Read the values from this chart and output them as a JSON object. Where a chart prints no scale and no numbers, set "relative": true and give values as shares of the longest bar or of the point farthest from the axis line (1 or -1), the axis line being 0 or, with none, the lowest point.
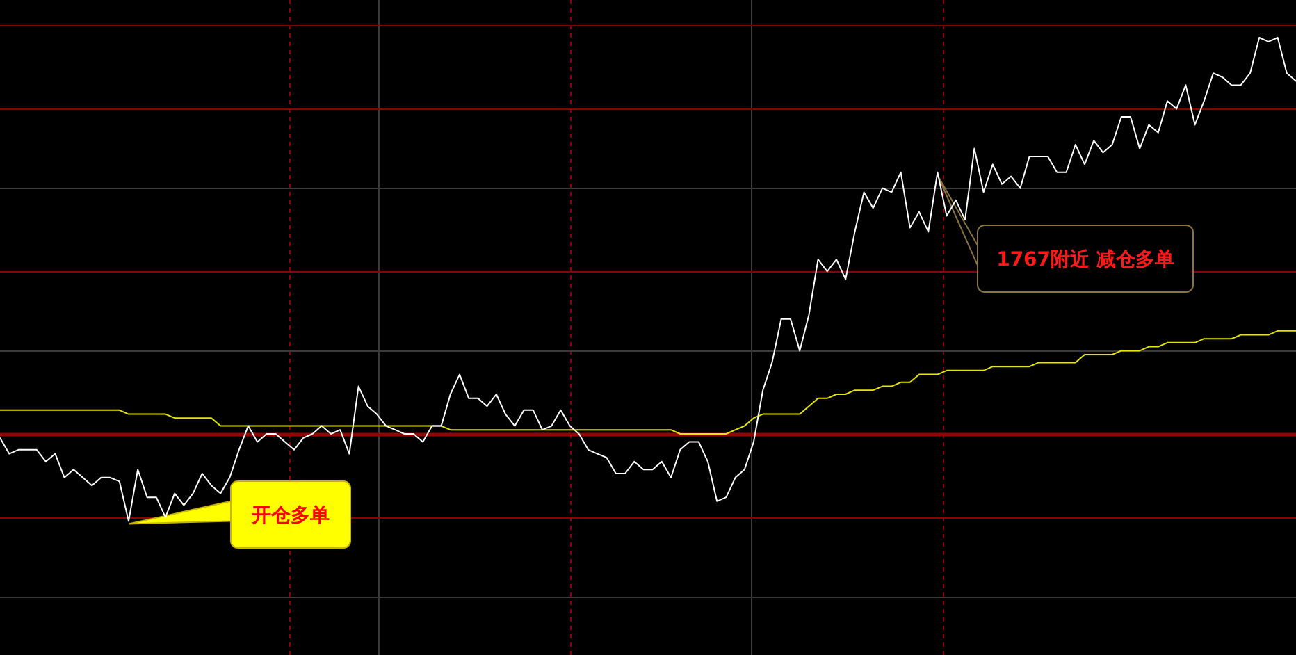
{
  "chart_data": {
    "type": "line",
    "relative": true,
    "grid": "x",
    "ref_lines": [
      {
        "axis": "y",
        "value": 0,
        "color": "#990000"
      },
      {
        "axis": "y",
        "value": 1.03,
        "color": "#8b0000"
      },
      {
        "axis": "y",
        "value": 0.82,
        "color": "#8b0000"
      },
      {
        "axis": "y",
        "value": 0.62,
        "color": "#3a3a3a"
      },
      {
        "axis": "y",
        "value": 0.41,
        "color": "#8b0000"
      },
      {
        "axis": "y",
        "value": 0.21,
        "color": "#3a3a3a"
      },
      {
        "axis": "y",
        "value": -0.21,
        "color": "#8b0000"
      },
      {
        "axis": "y",
        "value": -0.41,
        "color": "#3a3a3a"
      }
    ],
    "categories": [
      null,
      null,
      null,
      null,
      null,
      null,
      null,
      null,
      null,
      null,
      null,
      null,
      null,
      null,
      null,
      null,
      null,
      null,
      null,
      null,
      null,
      null,
      null,
      null,
      null,
      null,
      null,
      null,
      null,
      null,
      null,
      null,
      null,
      null,
      null,
      null,
      null,
      null,
      null,
      null,
      null,
      null,
      null,
      null,
      null,
      null,
      null,
      null,
      null,
      null,
      null,
      null,
      null,
      null,
      null,
      null,
      null,
      null,
      null,
      null,
      null,
      null,
      null,
      null,
      null,
      null,
      null,
      null,
      null,
      null,
      null,
      null,
      null,
      null,
      null,
      null,
      null,
      null,
      null,
      null,
      null,
      null,
      null,
      null,
      null,
      null,
      null,
      null,
      null,
      null,
      null,
      null,
      null,
      null,
      null,
      null,
      null,
      null,
      null,
      null,
      null,
      null,
      null,
      null,
      null,
      null,
      null,
      null,
      null,
      null,
      null,
      null,
      null,
      null,
      null,
      null,
      null,
      null,
      null,
      null,
      null,
      null,
      null,
      null,
      null,
      null,
      null,
      null,
      null,
      null,
      null,
      null,
      null,
      null,
      null,
      null,
      null,
      null,
      null,
      null,
      null,
      null
    ],
    "series": [
      {
        "color": "#ffffff",
        "values": [
          -0.01,
          -0.05,
          -0.04,
          -0.04,
          -0.04,
          -0.07,
          -0.05,
          -0.11,
          -0.09,
          -0.11,
          -0.13,
          -0.11,
          -0.11,
          -0.12,
          -0.22,
          -0.09,
          -0.16,
          -0.16,
          -0.21,
          -0.15,
          -0.18,
          -0.15,
          -0.1,
          -0.13,
          -0.15,
          -0.11,
          -0.04,
          0.02,
          -0.02,
          0,
          0,
          -0.02,
          -0.04,
          -0.01,
          0,
          0.02,
          0,
          0.01,
          -0.05,
          0.12,
          0.07,
          0.05,
          0.02,
          0.01,
          0,
          0,
          -0.02,
          0.02,
          0.02,
          0.1,
          0.15,
          0.09,
          0.09,
          0.07,
          0.1,
          0.05,
          0.02,
          0.06,
          0.06,
          0.01,
          0.02,
          0.06,
          0.02,
          0,
          -0.04,
          -0.05,
          -0.06,
          -0.1,
          -0.1,
          -0.07,
          -0.09,
          -0.09,
          -0.07,
          -0.11,
          -0.04,
          -0.02,
          -0.02,
          -0.07,
          -0.17,
          -0.16,
          -0.11,
          -0.09,
          -0.02,
          0.11,
          0.18,
          0.29,
          0.29,
          0.21,
          0.3,
          0.44,
          0.41,
          0.44,
          0.39,
          0.51,
          0.61,
          0.57,
          0.62,
          0.61,
          0.66,
          0.52,
          0.56,
          0.51,
          0.66,
          0.55,
          0.59,
          0.54,
          0.72,
          0.61,
          0.68,
          0.63,
          0.65,
          0.62,
          0.7,
          0.7,
          0.7,
          0.66,
          0.66,
          0.73,
          0.68,
          0.74,
          0.71,
          0.73,
          0.8,
          0.8,
          0.72,
          0.78,
          0.76,
          0.84,
          0.82,
          0.88,
          0.78,
          0.84,
          0.91,
          0.9,
          0.88,
          0.88,
          0.91,
          1,
          0.99,
          1,
          0.91,
          0.89
        ]
      },
      {
        "color": "#e6e600",
        "values": [
          0.06,
          0.06,
          0.06,
          0.06,
          0.06,
          0.06,
          0.06,
          0.06,
          0.06,
          0.06,
          0.06,
          0.06,
          0.06,
          0.06,
          0.05,
          0.05,
          0.05,
          0.05,
          0.05,
          0.04,
          0.04,
          0.04,
          0.04,
          0.04,
          0.02,
          0.02,
          0.02,
          0.02,
          0.02,
          0.02,
          0.02,
          0.02,
          0.02,
          0.02,
          0.02,
          0.02,
          0.02,
          0.02,
          0.02,
          0.02,
          0.02,
          0.02,
          0.02,
          0.02,
          0.02,
          0.02,
          0.02,
          0.02,
          0.02,
          0.01,
          0.01,
          0.01,
          0.01,
          0.01,
          0.01,
          0.01,
          0.01,
          0.01,
          0.01,
          0.01,
          0.01,
          0.01,
          0.01,
          0.01,
          0.01,
          0.01,
          0.01,
          0.01,
          0.01,
          0.01,
          0.01,
          0.01,
          0.01,
          0.01,
          0,
          0,
          0,
          0,
          0,
          0,
          0.01,
          0.02,
          0.04,
          0.05,
          0.05,
          0.05,
          0.05,
          0.05,
          0.07,
          0.09,
          0.09,
          0.1,
          0.1,
          0.11,
          0.11,
          0.11,
          0.12,
          0.12,
          0.13,
          0.13,
          0.15,
          0.15,
          0.15,
          0.16,
          0.16,
          0.16,
          0.16,
          0.16,
          0.17,
          0.17,
          0.17,
          0.17,
          0.17,
          0.18,
          0.18,
          0.18,
          0.18,
          0.18,
          0.2,
          0.2,
          0.2,
          0.2,
          0.21,
          0.21,
          0.21,
          0.22,
          0.22,
          0.23,
          0.23,
          0.23,
          0.23,
          0.24,
          0.24,
          0.24,
          0.24,
          0.25,
          0.25,
          0.25,
          0.25,
          0.26,
          0.26,
          0.26
        ]
      }
    ],
    "annotations": [
      "开仓多单",
      "1767附近 减仓多单"
    ]
  }
}
